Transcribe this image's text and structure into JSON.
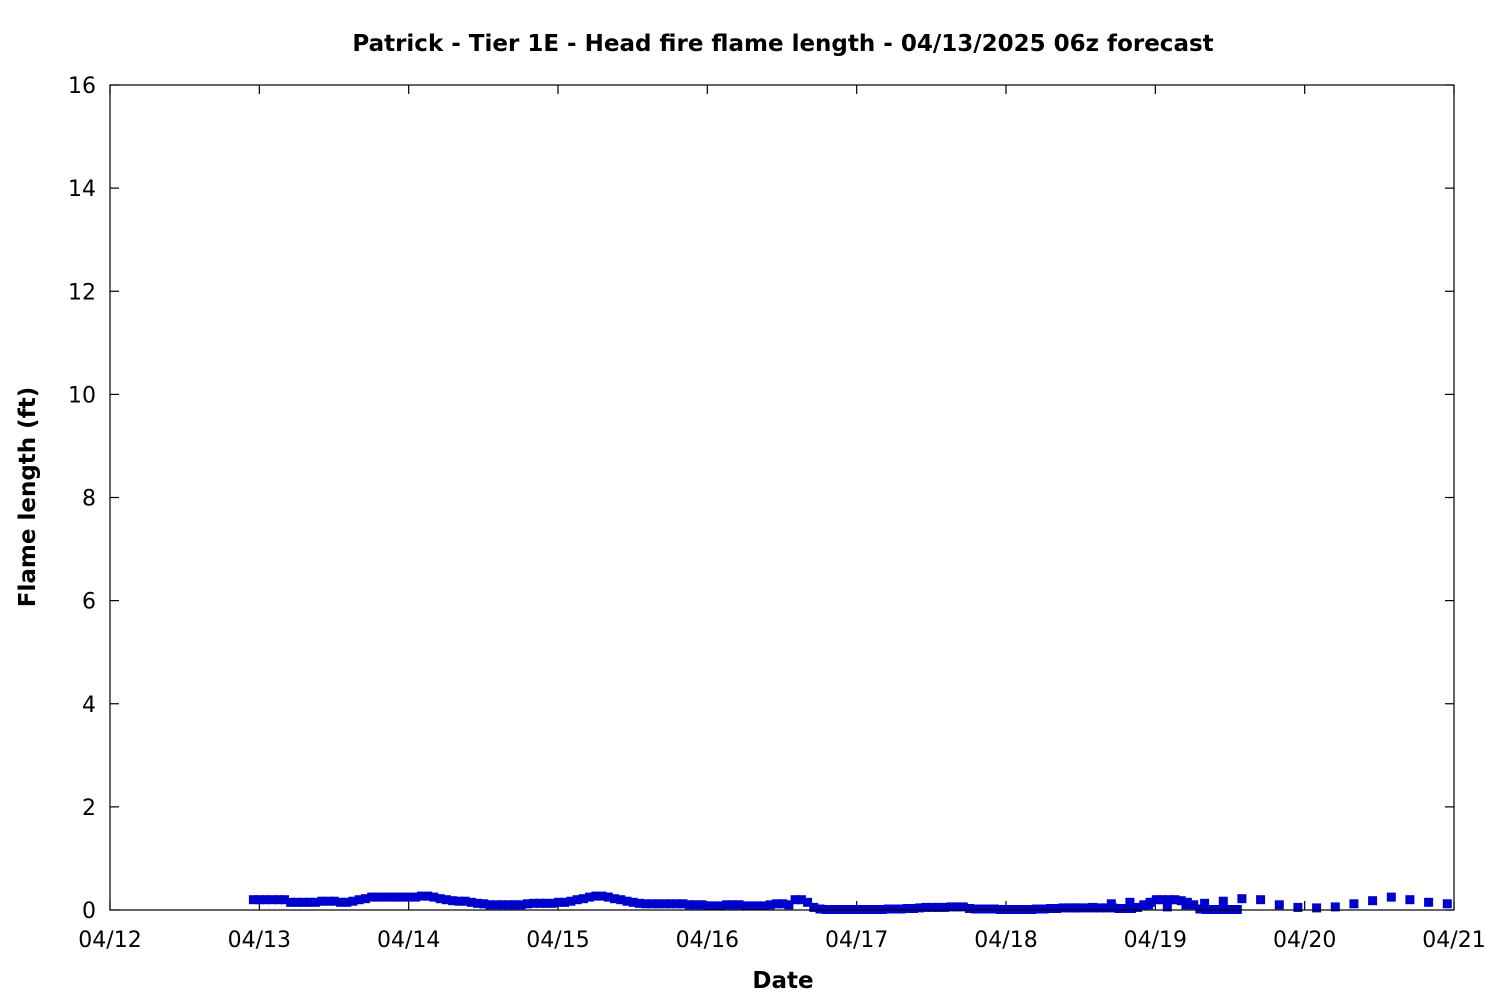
{
  "chart_data": {
    "type": "scatter",
    "title": "Patrick - Tier 1E - Head fire flame length - 04/13/2025 06z forecast",
    "xlabel": "Date",
    "ylabel": "Flame length (ft)",
    "x_tick_labels": [
      "04/12",
      "04/13",
      "04/14",
      "04/15",
      "04/16",
      "04/17",
      "04/18",
      "04/19",
      "04/20",
      "04/21"
    ],
    "x_range_days": [
      0,
      9
    ],
    "ylim": [
      0,
      16
    ],
    "y_tick_labels": [
      "0",
      "2",
      "4",
      "6",
      "8",
      "10",
      "12",
      "14",
      "16"
    ],
    "grid": false,
    "legend": "none",
    "marker_color": "#0000cc",
    "series": [
      {
        "resolution": "hourly",
        "x_start_day": 0.96,
        "x_step_days": 0.0417,
        "values": [
          0.2,
          0.2,
          0.2,
          0.2,
          0.2,
          0.2,
          0.15,
          0.15,
          0.15,
          0.15,
          0.15,
          0.17,
          0.17,
          0.17,
          0.15,
          0.15,
          0.17,
          0.2,
          0.22,
          0.25,
          0.25,
          0.25,
          0.25,
          0.25,
          0.25,
          0.25,
          0.25,
          0.27,
          0.27,
          0.25,
          0.22,
          0.2,
          0.18,
          0.17,
          0.17,
          0.15,
          0.13,
          0.12,
          0.1,
          0.1,
          0.1,
          0.1,
          0.1,
          0.1,
          0.12,
          0.13,
          0.13,
          0.13,
          0.13,
          0.15,
          0.15,
          0.17,
          0.2,
          0.22,
          0.25,
          0.27,
          0.27,
          0.25,
          0.22,
          0.2,
          0.17,
          0.15,
          0.13,
          0.12,
          0.12,
          0.12,
          0.12,
          0.12,
          0.12,
          0.12,
          0.1,
          0.1,
          0.1,
          0.08,
          0.08,
          0.08,
          0.1,
          0.1,
          0.1,
          0.08,
          0.08,
          0.08,
          0.08,
          0.1,
          0.12,
          0.12,
          0.1,
          0.2,
          0.2,
          0.15,
          0.05,
          0.02,
          0.01,
          0.01,
          0.01,
          0.01,
          0.01,
          0.01,
          0.01,
          0.01,
          0.01,
          0.01,
          0.02,
          0.02,
          0.02,
          0.03,
          0.03,
          0.04,
          0.05,
          0.05,
          0.05,
          0.05,
          0.06,
          0.06,
          0.06,
          0.03,
          0.02,
          0.02,
          0.02,
          0.02,
          0.01,
          0.01,
          0.01,
          0.01,
          0.01,
          0.01,
          0.02,
          0.02,
          0.03,
          0.03,
          0.04,
          0.04,
          0.04,
          0.04,
          0.04,
          0.04,
          0.04,
          0.04,
          0.04,
          0.03,
          0.03,
          0.03,
          0.05,
          0.1,
          0.15,
          0.2,
          0.2,
          0.2,
          0.2,
          0.18,
          0.15,
          0.1,
          0.02,
          0.01,
          0.01,
          0.01,
          0.01,
          0.01,
          0.01
        ]
      },
      {
        "resolution": "3-hourly",
        "x_start_day": 6.08,
        "x_step_days": 0.125,
        "values": [
          0.01,
          0.02,
          0.03,
          0.04,
          0.05,
          0.12,
          0.15,
          0.1,
          0.06,
          0.1,
          0.13,
          0.17,
          0.22,
          0.2,
          0.1,
          0.05,
          0.04,
          0.06,
          0.12,
          0.18,
          0.25,
          0.2,
          0.15,
          0.12
        ]
      }
    ]
  }
}
